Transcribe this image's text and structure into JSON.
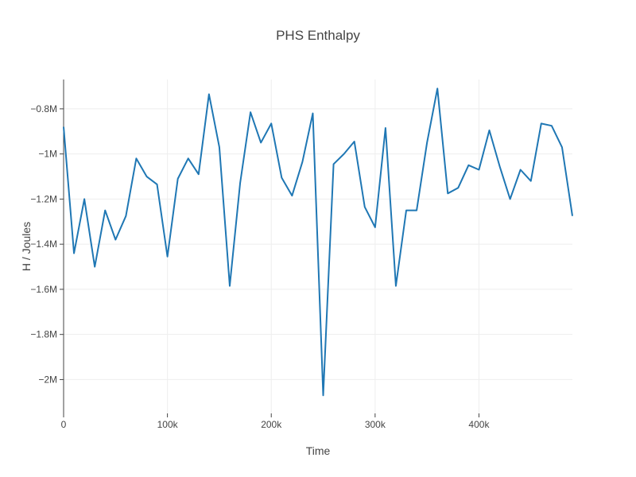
{
  "chart_data": {
    "type": "line",
    "title": "PHS Enthalpy",
    "xlabel": "Time",
    "ylabel": "H / Joules",
    "xlim": [
      0,
      490000
    ],
    "ylim": [
      -2150000,
      -670000
    ],
    "x_ticks": [
      {
        "value": 0,
        "label": "0"
      },
      {
        "value": 100000,
        "label": "100k"
      },
      {
        "value": 200000,
        "label": "200k"
      },
      {
        "value": 300000,
        "label": "300k"
      },
      {
        "value": 400000,
        "label": "400k"
      }
    ],
    "y_ticks": [
      {
        "value": -800000,
        "label": "−0.8M"
      },
      {
        "value": -1000000,
        "label": "−1M"
      },
      {
        "value": -1200000,
        "label": "−1.2M"
      },
      {
        "value": -1400000,
        "label": "−1.4M"
      },
      {
        "value": -1600000,
        "label": "−1.6M"
      },
      {
        "value": -1800000,
        "label": "−1.8M"
      },
      {
        "value": -2000000,
        "label": "−2M"
      }
    ],
    "grid": true,
    "color": "#1f77b4",
    "series": [
      {
        "x": [
          0,
          10000,
          20000,
          30000,
          40000,
          50000,
          60000,
          70000,
          80000,
          90000,
          100000,
          110000,
          120000,
          130000,
          140000,
          150000,
          160000,
          170000,
          180000,
          190000,
          200000,
          210000,
          220000,
          230000,
          240000,
          250000,
          260000,
          270000,
          280000,
          290000,
          300000,
          310000,
          320000,
          330000,
          340000,
          350000,
          360000,
          370000,
          380000,
          390000,
          400000,
          410000,
          420000,
          430000,
          440000,
          450000,
          460000,
          470000,
          480000,
          490000
        ],
        "y": [
          -880000,
          -1440000,
          -1200000,
          -1500000,
          -1250000,
          -1380000,
          -1275000,
          -1020000,
          -1100000,
          -1135000,
          -1455000,
          -1110000,
          -1020000,
          -1090000,
          -735000,
          -970000,
          -1585000,
          -1130000,
          -815000,
          -950000,
          -865000,
          -1105000,
          -1185000,
          -1035000,
          -820000,
          -2070000,
          -1045000,
          -1000000,
          -945000,
          -1235000,
          -1325000,
          -885000,
          -1585000,
          -1250000,
          -1250000,
          -950000,
          -710000,
          -1175000,
          -1150000,
          -1050000,
          -1070000,
          -895000,
          -1055000,
          -1200000,
          -1070000,
          -1120000,
          -865000,
          -875000,
          -970000,
          -1275000
        ]
      }
    ]
  }
}
